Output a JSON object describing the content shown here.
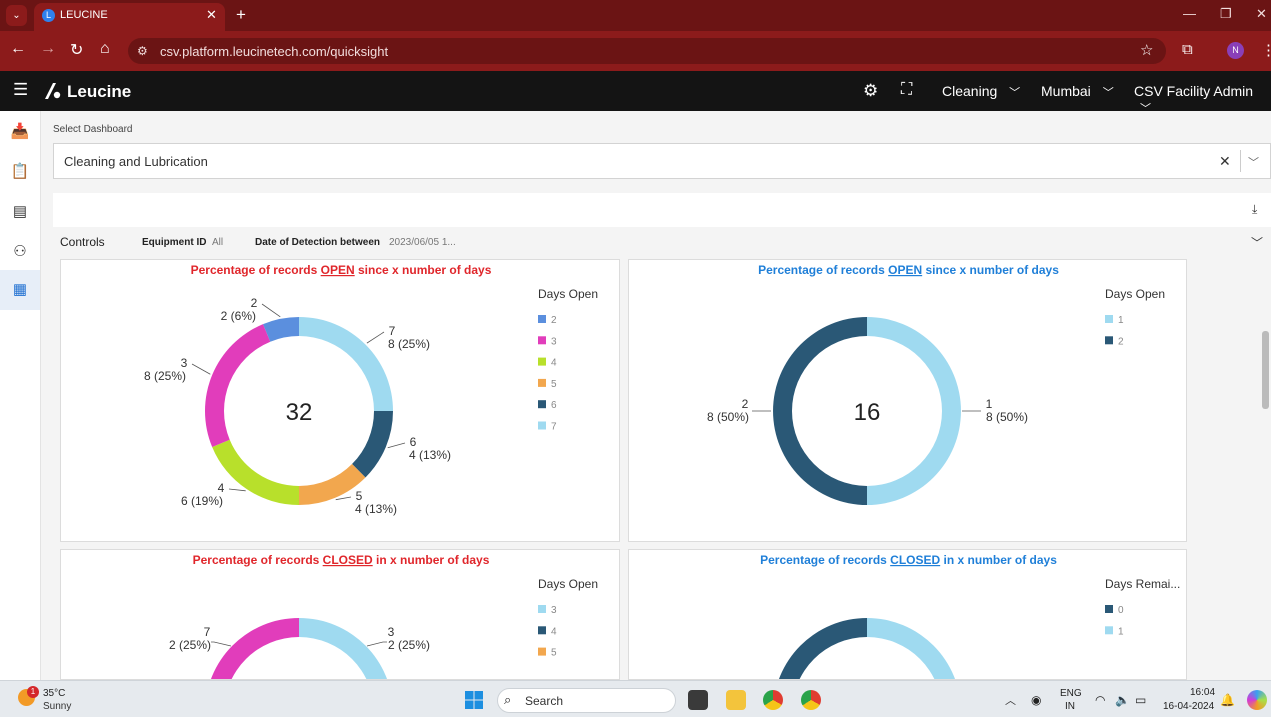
{
  "browser": {
    "tab_title": "LEUCINE",
    "url": "csv.platform.leucinetech.com/quicksight",
    "profile_initial": "N",
    "tab_favicon": "L"
  },
  "header": {
    "brand": "Leucine",
    "facility": "Cleaning",
    "location": "Mumbai",
    "user_role": "CSV Facility Admin"
  },
  "dashboard_select": {
    "label": "Select Dashboard",
    "value": "Cleaning and Lubrication"
  },
  "controls": {
    "title": "Controls",
    "equipment_label": "Equipment ID",
    "equipment_value": "All",
    "date_label": "Date of Detection between",
    "date_value": "2023/06/05 1..."
  },
  "panels": [
    {
      "title_pre": "Percentage of records ",
      "title_key": "OPEN",
      "title_post": " since x number of days",
      "title_color": "#e0262b",
      "legend_title": "Days Open",
      "legend": [
        {
          "label": "2",
          "color": "#5b8fde"
        },
        {
          "label": "3",
          "color": "#e13dbb"
        },
        {
          "label": "4",
          "color": "#b8e02b"
        },
        {
          "label": "5",
          "color": "#f2a74e"
        },
        {
          "label": "6",
          "color": "#2a5876"
        },
        {
          "label": "7",
          "color": "#9fdaf0"
        }
      ],
      "total": "32",
      "slice_labels": [
        {
          "name": "2",
          "value": "2 (6%)"
        },
        {
          "name": "7",
          "value": "8 (25%)"
        },
        {
          "name": "3",
          "value": "8 (25%)"
        },
        {
          "name": "6",
          "value": "4 (13%)"
        },
        {
          "name": "4",
          "value": "6 (19%)"
        },
        {
          "name": "5",
          "value": "4 (13%)"
        }
      ]
    },
    {
      "title_pre": "Percentage of records ",
      "title_key": "OPEN",
      "title_post": " since x number of days",
      "title_color": "#1f7fd8",
      "legend_title": "Days Open",
      "legend": [
        {
          "label": "1",
          "color": "#9fdaf0"
        },
        {
          "label": "2",
          "color": "#2a5876"
        }
      ],
      "total": "16",
      "slice_labels": [
        {
          "name": "2",
          "value": "8 (50%)"
        },
        {
          "name": "1",
          "value": "8 (50%)"
        }
      ]
    },
    {
      "title_pre": "Percentage of records ",
      "title_key": "CLOSED",
      "title_post": " in x number of days",
      "title_color": "#e0262b",
      "legend_title": "Days Open",
      "legend": [
        {
          "label": "3",
          "color": "#9fdaf0"
        },
        {
          "label": "4",
          "color": "#2a5876"
        },
        {
          "label": "5",
          "color": "#f2a74e"
        }
      ],
      "slice_labels": [
        {
          "name": "7",
          "value": "2 (25%)"
        },
        {
          "name": "3",
          "value": "2 (25%)"
        }
      ]
    },
    {
      "title_pre": "Percentage of records ",
      "title_key": "CLOSED",
      "title_post": " in x number of days",
      "title_color": "#1f7fd8",
      "legend_title": "Days Remai...",
      "legend": [
        {
          "label": "0",
          "color": "#2a5876"
        },
        {
          "label": "1",
          "color": "#9fdaf0"
        }
      ]
    }
  ],
  "chart_data": [
    {
      "type": "pie",
      "title": "Percentage of records OPEN since x number of days",
      "legend_title": "Days Open",
      "categories": [
        "2",
        "3",
        "4",
        "5",
        "6",
        "7"
      ],
      "values": [
        2,
        8,
        6,
        4,
        4,
        8
      ],
      "percent": [
        6,
        25,
        19,
        13,
        13,
        25
      ],
      "total": 32,
      "donut": true,
      "legend_position": "right"
    },
    {
      "type": "pie",
      "title": "Percentage of records OPEN since x number of days",
      "legend_title": "Days Open",
      "categories": [
        "1",
        "2"
      ],
      "values": [
        8,
        8
      ],
      "percent": [
        50,
        50
      ],
      "total": 16,
      "donut": true,
      "legend_position": "right"
    },
    {
      "type": "pie",
      "title": "Percentage of records CLOSED in x number of days",
      "legend_title": "Days Open",
      "categories": [
        "3",
        "7"
      ],
      "values": [
        2,
        2
      ],
      "percent": [
        25,
        25
      ],
      "donut": true,
      "legend_position": "right"
    },
    {
      "type": "pie",
      "title": "Percentage of records CLOSED in x number of days",
      "legend_title": "Days Remai...",
      "categories": [
        "0",
        "1"
      ],
      "donut": true,
      "legend_position": "right"
    }
  ],
  "taskbar": {
    "temperature": "35°C",
    "condition": "Sunny",
    "weather_badge": "1",
    "search_placeholder": "Search",
    "lang_line1": "ENG",
    "lang_line2": "IN",
    "time": "16:04",
    "date": "16-04-2024"
  }
}
